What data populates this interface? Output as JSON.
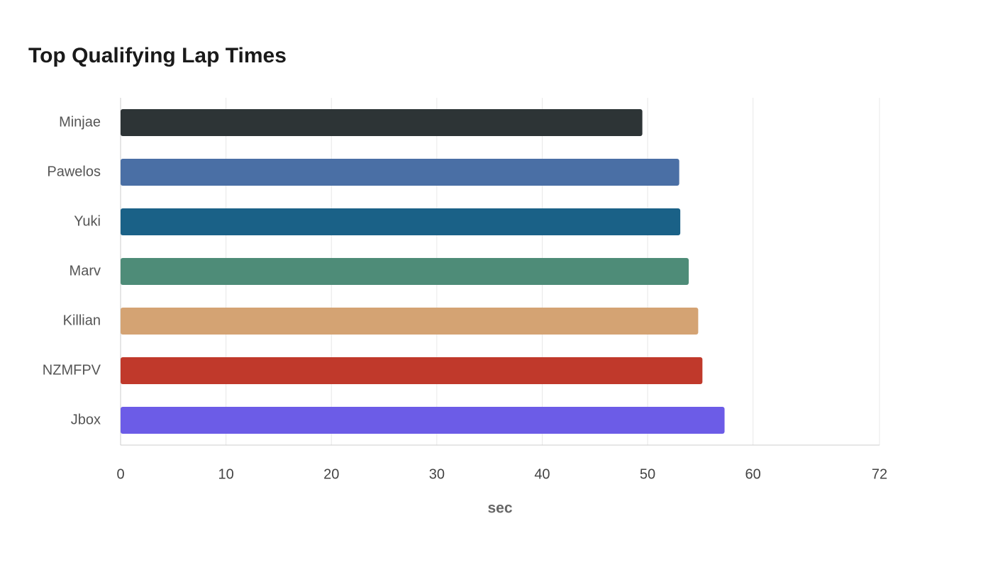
{
  "chart_data": {
    "type": "bar",
    "orientation": "horizontal",
    "title": "Top Qualifying Lap Times",
    "x_label": "sec",
    "categories": [
      "Minjae",
      "Pawelos",
      "Yuki",
      "Marv",
      "Killian",
      "NZMFPV",
      "Jbox"
    ],
    "values": [
      49.5,
      53.0,
      53.1,
      53.9,
      54.8,
      55.2,
      57.3
    ],
    "colors": [
      "#2d3436",
      "#4a6fa5",
      "#1a6187",
      "#4e8c78",
      "#d4a373",
      "#c0392b",
      "#6c5ce7"
    ],
    "xlim": [
      0,
      72
    ],
    "xticks": [
      0,
      10,
      20,
      30,
      40,
      50,
      60,
      72
    ],
    "grid": true
  }
}
